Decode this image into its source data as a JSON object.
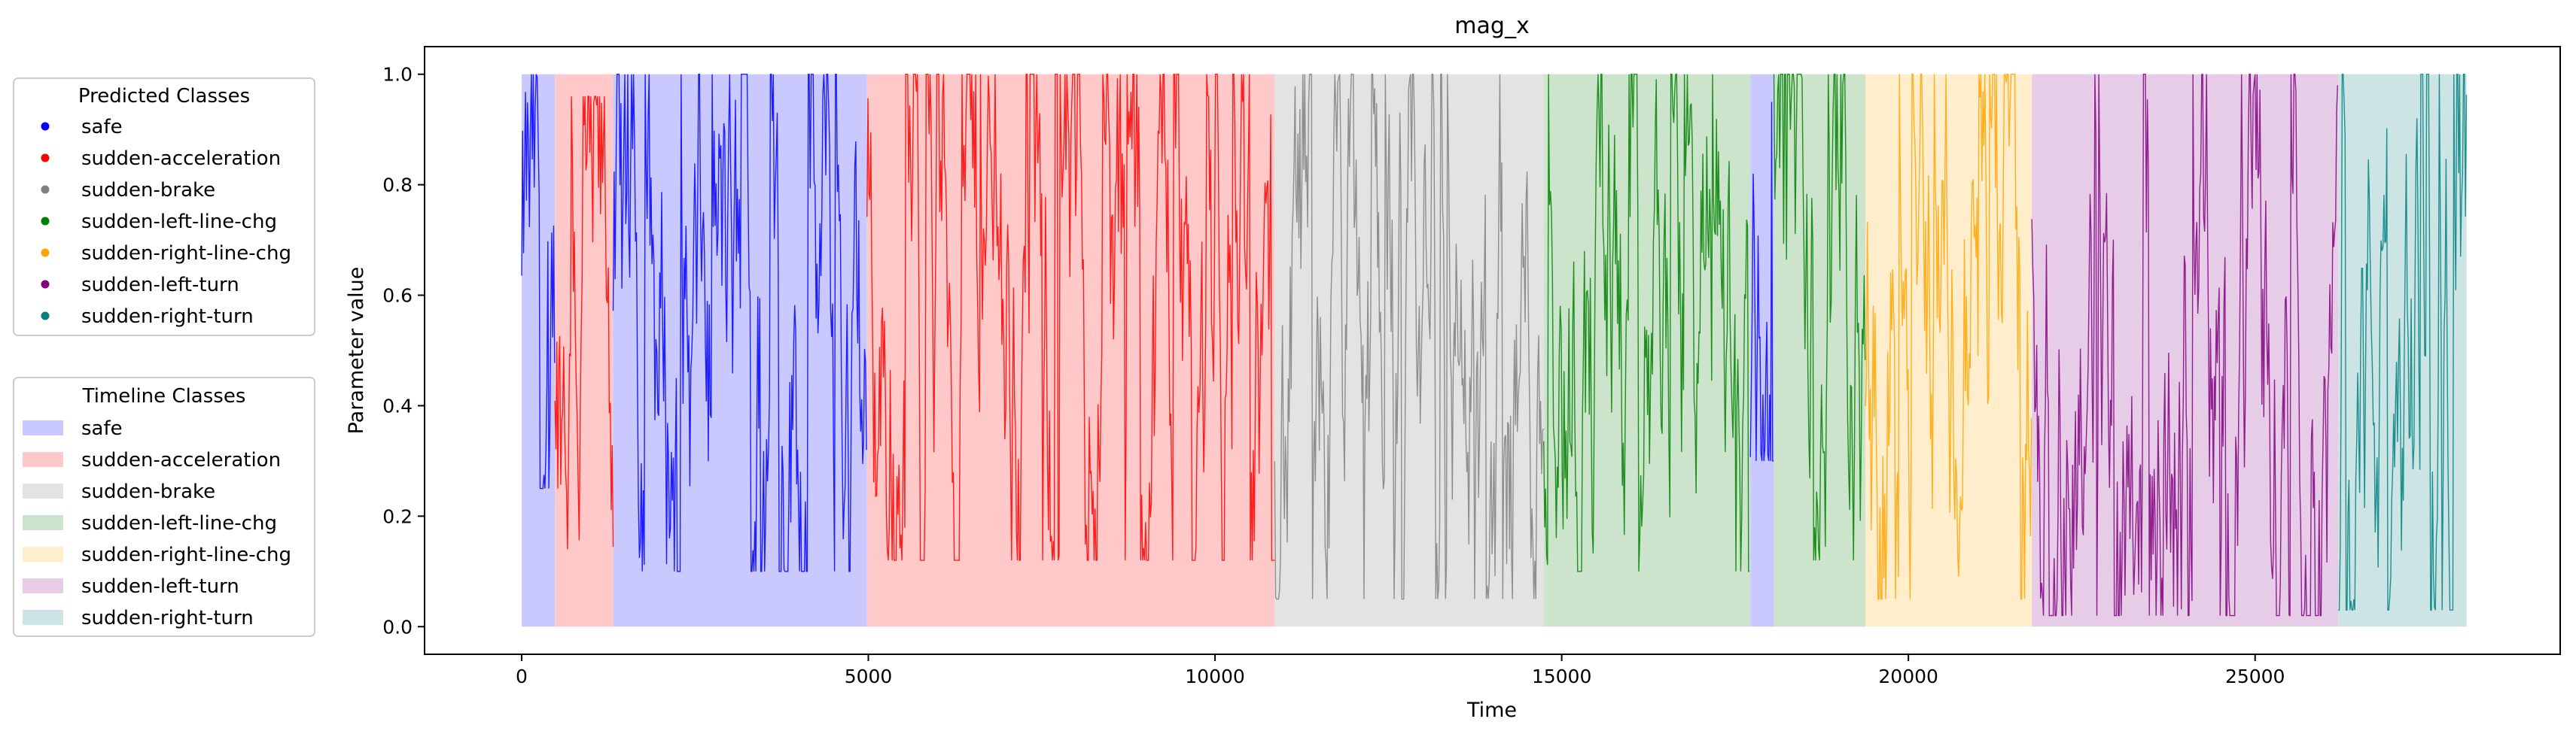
{
  "chart_data": {
    "type": "line",
    "title": "mag_x",
    "xlabel": "Time",
    "ylabel": "Parameter value",
    "xlim": [
      -1400,
      29400
    ],
    "ylim": [
      -0.05,
      1.05
    ],
    "xticks": [
      0,
      5000,
      10000,
      15000,
      20000,
      25000
    ],
    "yticks": [
      0.0,
      0.2,
      0.4,
      0.6,
      0.8,
      1.0
    ],
    "xtick_labels": [
      "0",
      "5000",
      "10000",
      "15000",
      "20000",
      "25000"
    ],
    "ytick_labels": [
      "0.0",
      "0.2",
      "0.4",
      "0.6",
      "0.8",
      "1.0"
    ],
    "grid": false,
    "classes": [
      {
        "name": "safe",
        "color": "#0000ff",
        "shade": "#c9c9ff"
      },
      {
        "name": "sudden-acceleration",
        "color": "#ff0000",
        "shade": "#ffc9c9"
      },
      {
        "name": "sudden-brake",
        "color": "#808080",
        "shade": "#e3e3e3"
      },
      {
        "name": "sudden-left-line-chg",
        "color": "#008000",
        "shade": "#cce4cc"
      },
      {
        "name": "sudden-right-line-chg",
        "color": "#ffa500",
        "shade": "#ffedcc"
      },
      {
        "name": "sudden-left-turn",
        "color": "#800080",
        "shade": "#e6cce6"
      },
      {
        "name": "sudden-right-turn",
        "color": "#008080",
        "shade": "#cce4e4"
      }
    ],
    "timeline_segments": [
      {
        "class": "safe",
        "start": 0,
        "end": 480
      },
      {
        "class": "sudden-acceleration",
        "start": 480,
        "end": 1320
      },
      {
        "class": "safe",
        "start": 1320,
        "end": 4980
      },
      {
        "class": "sudden-acceleration",
        "start": 4980,
        "end": 10860
      },
      {
        "class": "sudden-brake",
        "start": 10860,
        "end": 14740
      },
      {
        "class": "sudden-left-line-chg",
        "start": 14740,
        "end": 17720
      },
      {
        "class": "safe",
        "start": 17720,
        "end": 18060
      },
      {
        "class": "sudden-left-line-chg",
        "start": 18060,
        "end": 19380
      },
      {
        "class": "sudden-right-line-chg",
        "start": 19380,
        "end": 21780
      },
      {
        "class": "sudden-left-turn",
        "start": 21780,
        "end": 26200
      },
      {
        "class": "sudden-right-turn",
        "start": 26200,
        "end": 28050
      }
    ],
    "signal_segments": [
      {
        "class": "safe",
        "start": 0,
        "end": 480,
        "min": 0.25,
        "max": 1.0,
        "mean": 0.55
      },
      {
        "class": "sudden-acceleration",
        "start": 480,
        "end": 1320,
        "min": 0.14,
        "max": 0.96,
        "mean": 0.55
      },
      {
        "class": "safe",
        "start": 1320,
        "end": 4980,
        "min": 0.1,
        "max": 1.0,
        "mean": 0.42
      },
      {
        "class": "sudden-acceleration",
        "start": 4980,
        "end": 10860,
        "min": 0.12,
        "max": 1.0,
        "mean": 0.5
      },
      {
        "class": "sudden-brake",
        "start": 10860,
        "end": 14740,
        "min": 0.05,
        "max": 1.0,
        "mean": 0.5
      },
      {
        "class": "sudden-left-line-chg",
        "start": 14740,
        "end": 17720,
        "min": 0.1,
        "max": 1.0,
        "mean": 0.52
      },
      {
        "class": "safe",
        "start": 17720,
        "end": 18060,
        "min": 0.3,
        "max": 0.95,
        "mean": 0.55
      },
      {
        "class": "sudden-left-line-chg",
        "start": 18060,
        "end": 19380,
        "min": 0.12,
        "max": 1.0,
        "mean": 0.45
      },
      {
        "class": "sudden-right-line-chg",
        "start": 19380,
        "end": 21780,
        "min": 0.05,
        "max": 1.0,
        "mean": 0.55
      },
      {
        "class": "sudden-left-turn",
        "start": 21780,
        "end": 26200,
        "min": 0.02,
        "max": 1.0,
        "mean": 0.5
      },
      {
        "class": "sudden-right-turn",
        "start": 26200,
        "end": 28050,
        "min": 0.03,
        "max": 1.0,
        "mean": 0.5
      }
    ]
  },
  "legends": {
    "predicted": {
      "title": "Predicted Classes",
      "items": [
        "safe",
        "sudden-acceleration",
        "sudden-brake",
        "sudden-left-line-chg",
        "sudden-right-line-chg",
        "sudden-left-turn",
        "sudden-right-turn"
      ]
    },
    "timeline": {
      "title": "Timeline Classes",
      "items": [
        "safe",
        "sudden-acceleration",
        "sudden-brake",
        "sudden-left-line-chg",
        "sudden-right-line-chg",
        "sudden-left-turn",
        "sudden-right-turn"
      ]
    }
  }
}
